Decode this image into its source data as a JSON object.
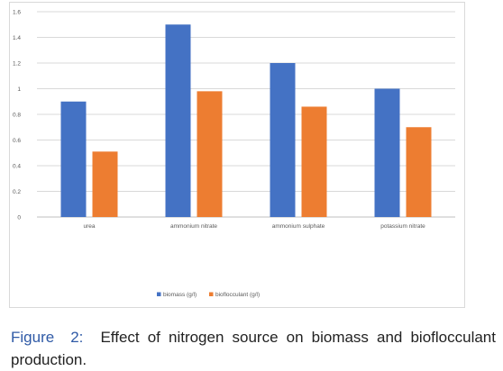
{
  "chart_data": {
    "type": "bar",
    "categories": [
      "urea",
      "ammonium nitrate",
      "ammonium sulphate",
      "potassium nitrate"
    ],
    "series": [
      {
        "name": "biomass (g/l)",
        "values": [
          0.9,
          1.5,
          1.2,
          1.0
        ],
        "color": "#4472c4"
      },
      {
        "name": "bioflocculant (g/l)",
        "values": [
          0.51,
          0.98,
          0.86,
          0.7
        ],
        "color": "#ed7d31"
      }
    ],
    "yticks": [
      "0",
      "0.2",
      "0.4",
      "0.6",
      "0.8",
      "1",
      "1.2",
      "1.4",
      "1.6"
    ],
    "ylim": [
      0,
      1.6
    ],
    "grid": true,
    "legend_position": "bottom",
    "title": "",
    "xlabel": "",
    "ylabel": ""
  },
  "caption": {
    "label": "Figure",
    "number": "2:",
    "text": "Effect of nitrogen source on biomass and bioflocculant production."
  }
}
